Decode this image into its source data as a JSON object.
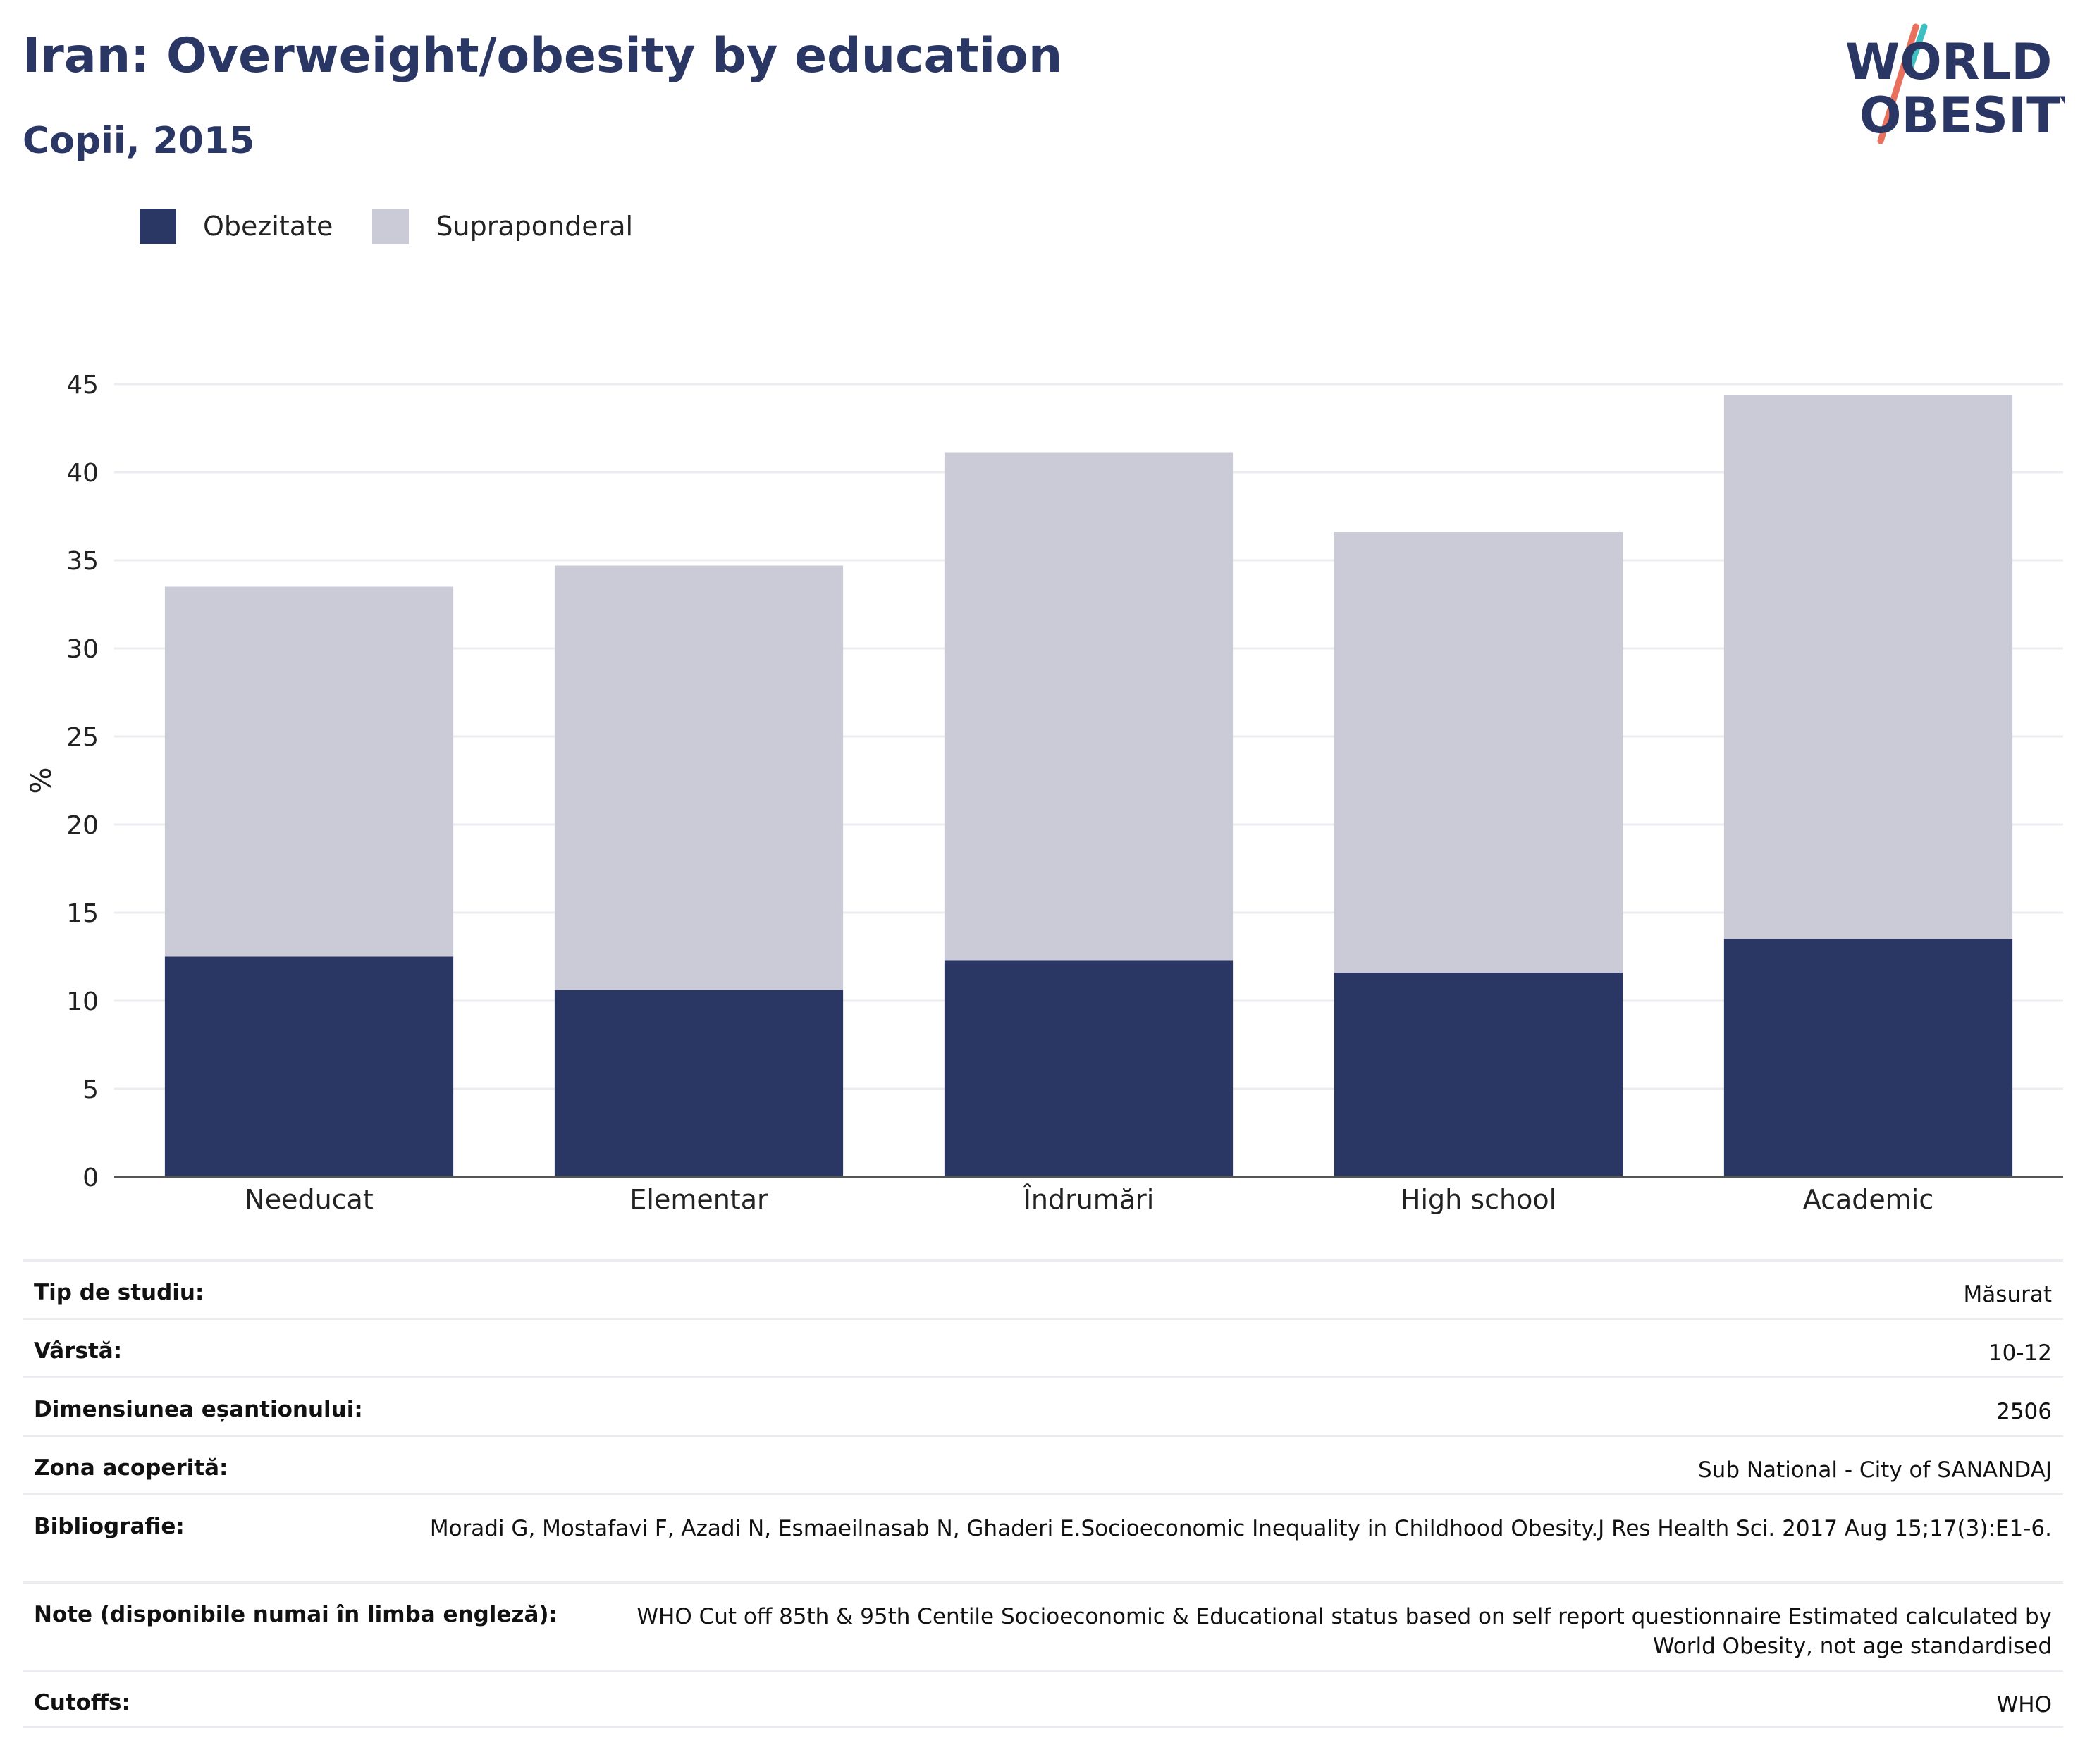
{
  "header": {
    "title": "Iran: Overweight/obesity by education",
    "subtitle": "Copii, 2015"
  },
  "logo": {
    "line1": "WORLD",
    "line2": "OBESITY",
    "colors": {
      "navy": "#2a3664",
      "teal": "#3ebfc1",
      "coral": "#e8705c"
    }
  },
  "colors": {
    "obesity": "#2a3664",
    "overweight": "#cacbd7",
    "grid": "#ececf0",
    "axis": "#555555"
  },
  "chart_data": {
    "type": "bar",
    "stacked": true,
    "categories": [
      "Needucat",
      "Elementar",
      "Îndrumări",
      "High school",
      "Academic"
    ],
    "series": [
      {
        "name": "Obezitate",
        "values": [
          12.5,
          10.6,
          12.3,
          11.6,
          13.5
        ]
      },
      {
        "name": "Supraponderal",
        "values": [
          21.0,
          24.1,
          28.8,
          25.0,
          30.9
        ]
      }
    ],
    "ylabel": "%",
    "ylim": [
      0,
      45
    ],
    "yticks": [
      0,
      5,
      10,
      15,
      20,
      25,
      30,
      35,
      40,
      45
    ],
    "grid": true,
    "legend": "top-left"
  },
  "info": [
    {
      "label": "Tip de studiu:",
      "value": "Măsurat"
    },
    {
      "label": "Vârstă:",
      "value": "10-12"
    },
    {
      "label": "Dimensiunea eșantionului:",
      "value": "2506"
    },
    {
      "label": "Zona acoperită:",
      "value": "Sub National - City of SANANDAJ"
    },
    {
      "label": "Bibliografie:",
      "value": "Moradi G, Mostafavi F, Azadi N, Esmaeilnasab N, Ghaderi E.Socioeconomic Inequality in Childhood Obesity.J Res Health Sci. 2017 Aug 15;17(3):E1-6."
    },
    {
      "label": "Note (disponibile numai în limba engleză):",
      "value": "WHO Cut off 85th & 95th Centile Socioeconomic & Educational status based on self report questionnaire Estimated calculated by World Obesity, not age standardised"
    },
    {
      "label": "Cutoffs:",
      "value": "WHO"
    }
  ]
}
